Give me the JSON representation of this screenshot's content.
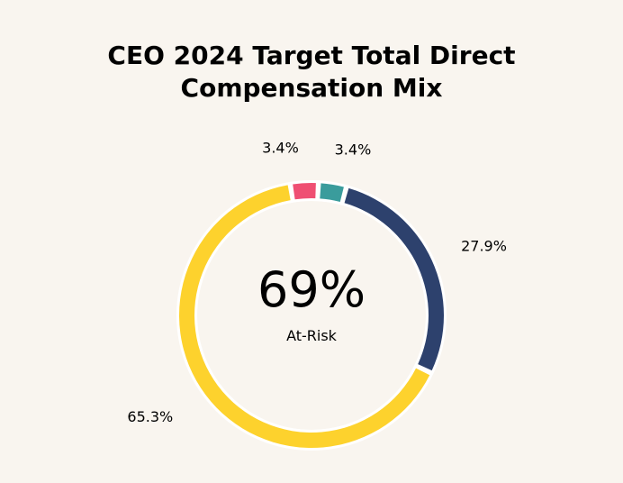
{
  "chart_data": {
    "type": "pie",
    "variant": "donut",
    "title_line1": "CEO 2024 Target Total Direct",
    "title_line2": "Compensation Mix",
    "center_value": "69%",
    "center_label": "At-Risk",
    "slices": [
      {
        "value": 3.4,
        "label": "3.4%",
        "color": "#3a9c9c"
      },
      {
        "value": 27.9,
        "label": "27.9%",
        "color": "#2d416d"
      },
      {
        "value": 65.3,
        "label": "65.3%",
        "color": "#fdd22d"
      },
      {
        "value": 3.4,
        "label": "3.4%",
        "color": "#ef4f73"
      }
    ],
    "start_angle": "top, clockwise",
    "background": "#f9f5ef"
  }
}
